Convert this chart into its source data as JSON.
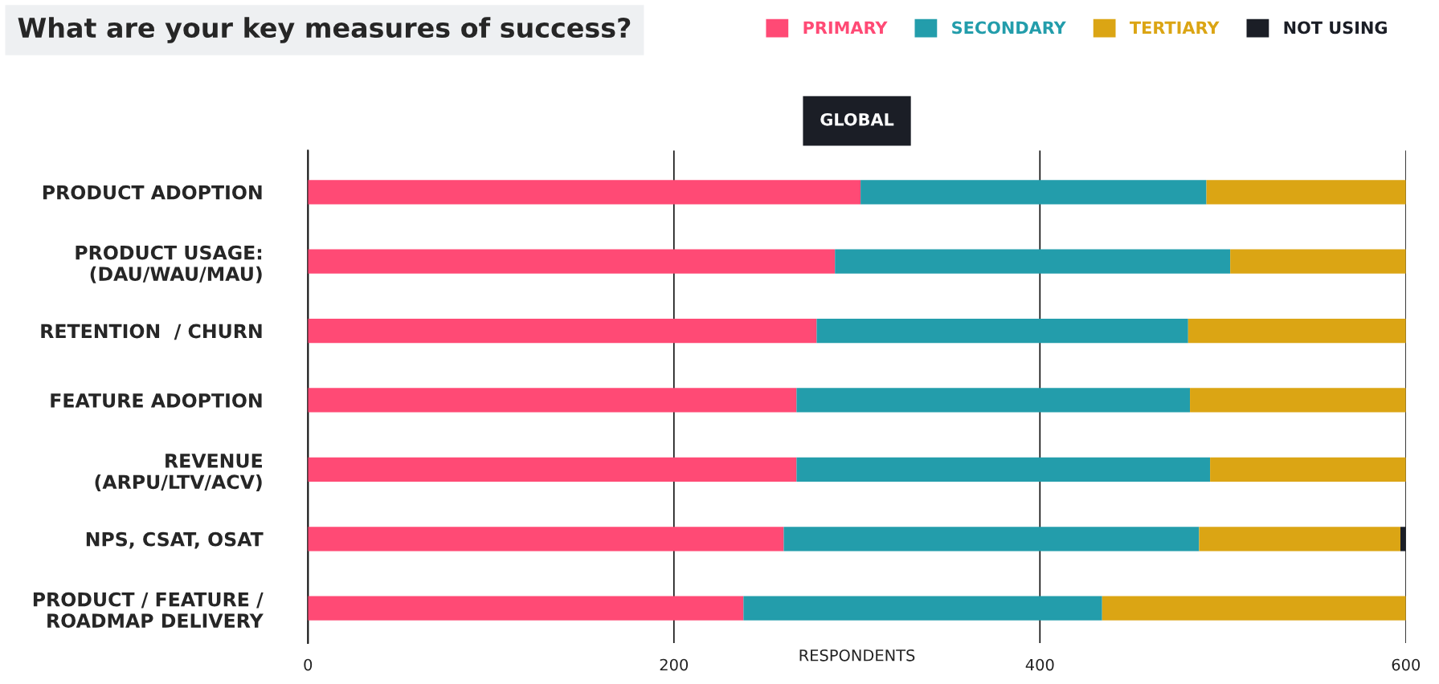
{
  "chart_data": {
    "type": "bar",
    "orientation": "horizontal",
    "stacked": true,
    "title": "What are your key measures of success?",
    "subtitle": "GLOBAL",
    "xlabel": "RESPONDENTS",
    "categories": [
      "PRODUCT ADOPTION",
      "PRODUCT USAGE:\n(DAU/WAU/MAU)",
      "RETENTION  / CHURN",
      "FEATURE ADOPTION",
      "REVENUE\n(ARPU/LTV/ACV)",
      "NPS, CSAT, OSAT",
      "PRODUCT / FEATURE /\nROADMAP DELIVERY"
    ],
    "series": [
      {
        "name": "PRIMARY",
        "color": "#ff4a75",
        "values": [
          302,
          288,
          278,
          267,
          267,
          260,
          238
        ]
      },
      {
        "name": "SECONDARY",
        "color": "#239dab",
        "values": [
          189,
          216,
          203,
          215,
          226,
          227,
          196
        ]
      },
      {
        "name": "TERTIARY",
        "color": "#dba514",
        "values": [
          109,
          96,
          119,
          118,
          107,
          110,
          166
        ]
      },
      {
        "name": "NOT USING",
        "color": "#1b1e26",
        "values": [
          null,
          null,
          null,
          null,
          null,
          3,
          null
        ]
      }
    ],
    "xlim": [
      0,
      600
    ],
    "xticks": [
      0,
      200,
      400,
      600
    ],
    "grid": "x",
    "legend": "top right"
  }
}
